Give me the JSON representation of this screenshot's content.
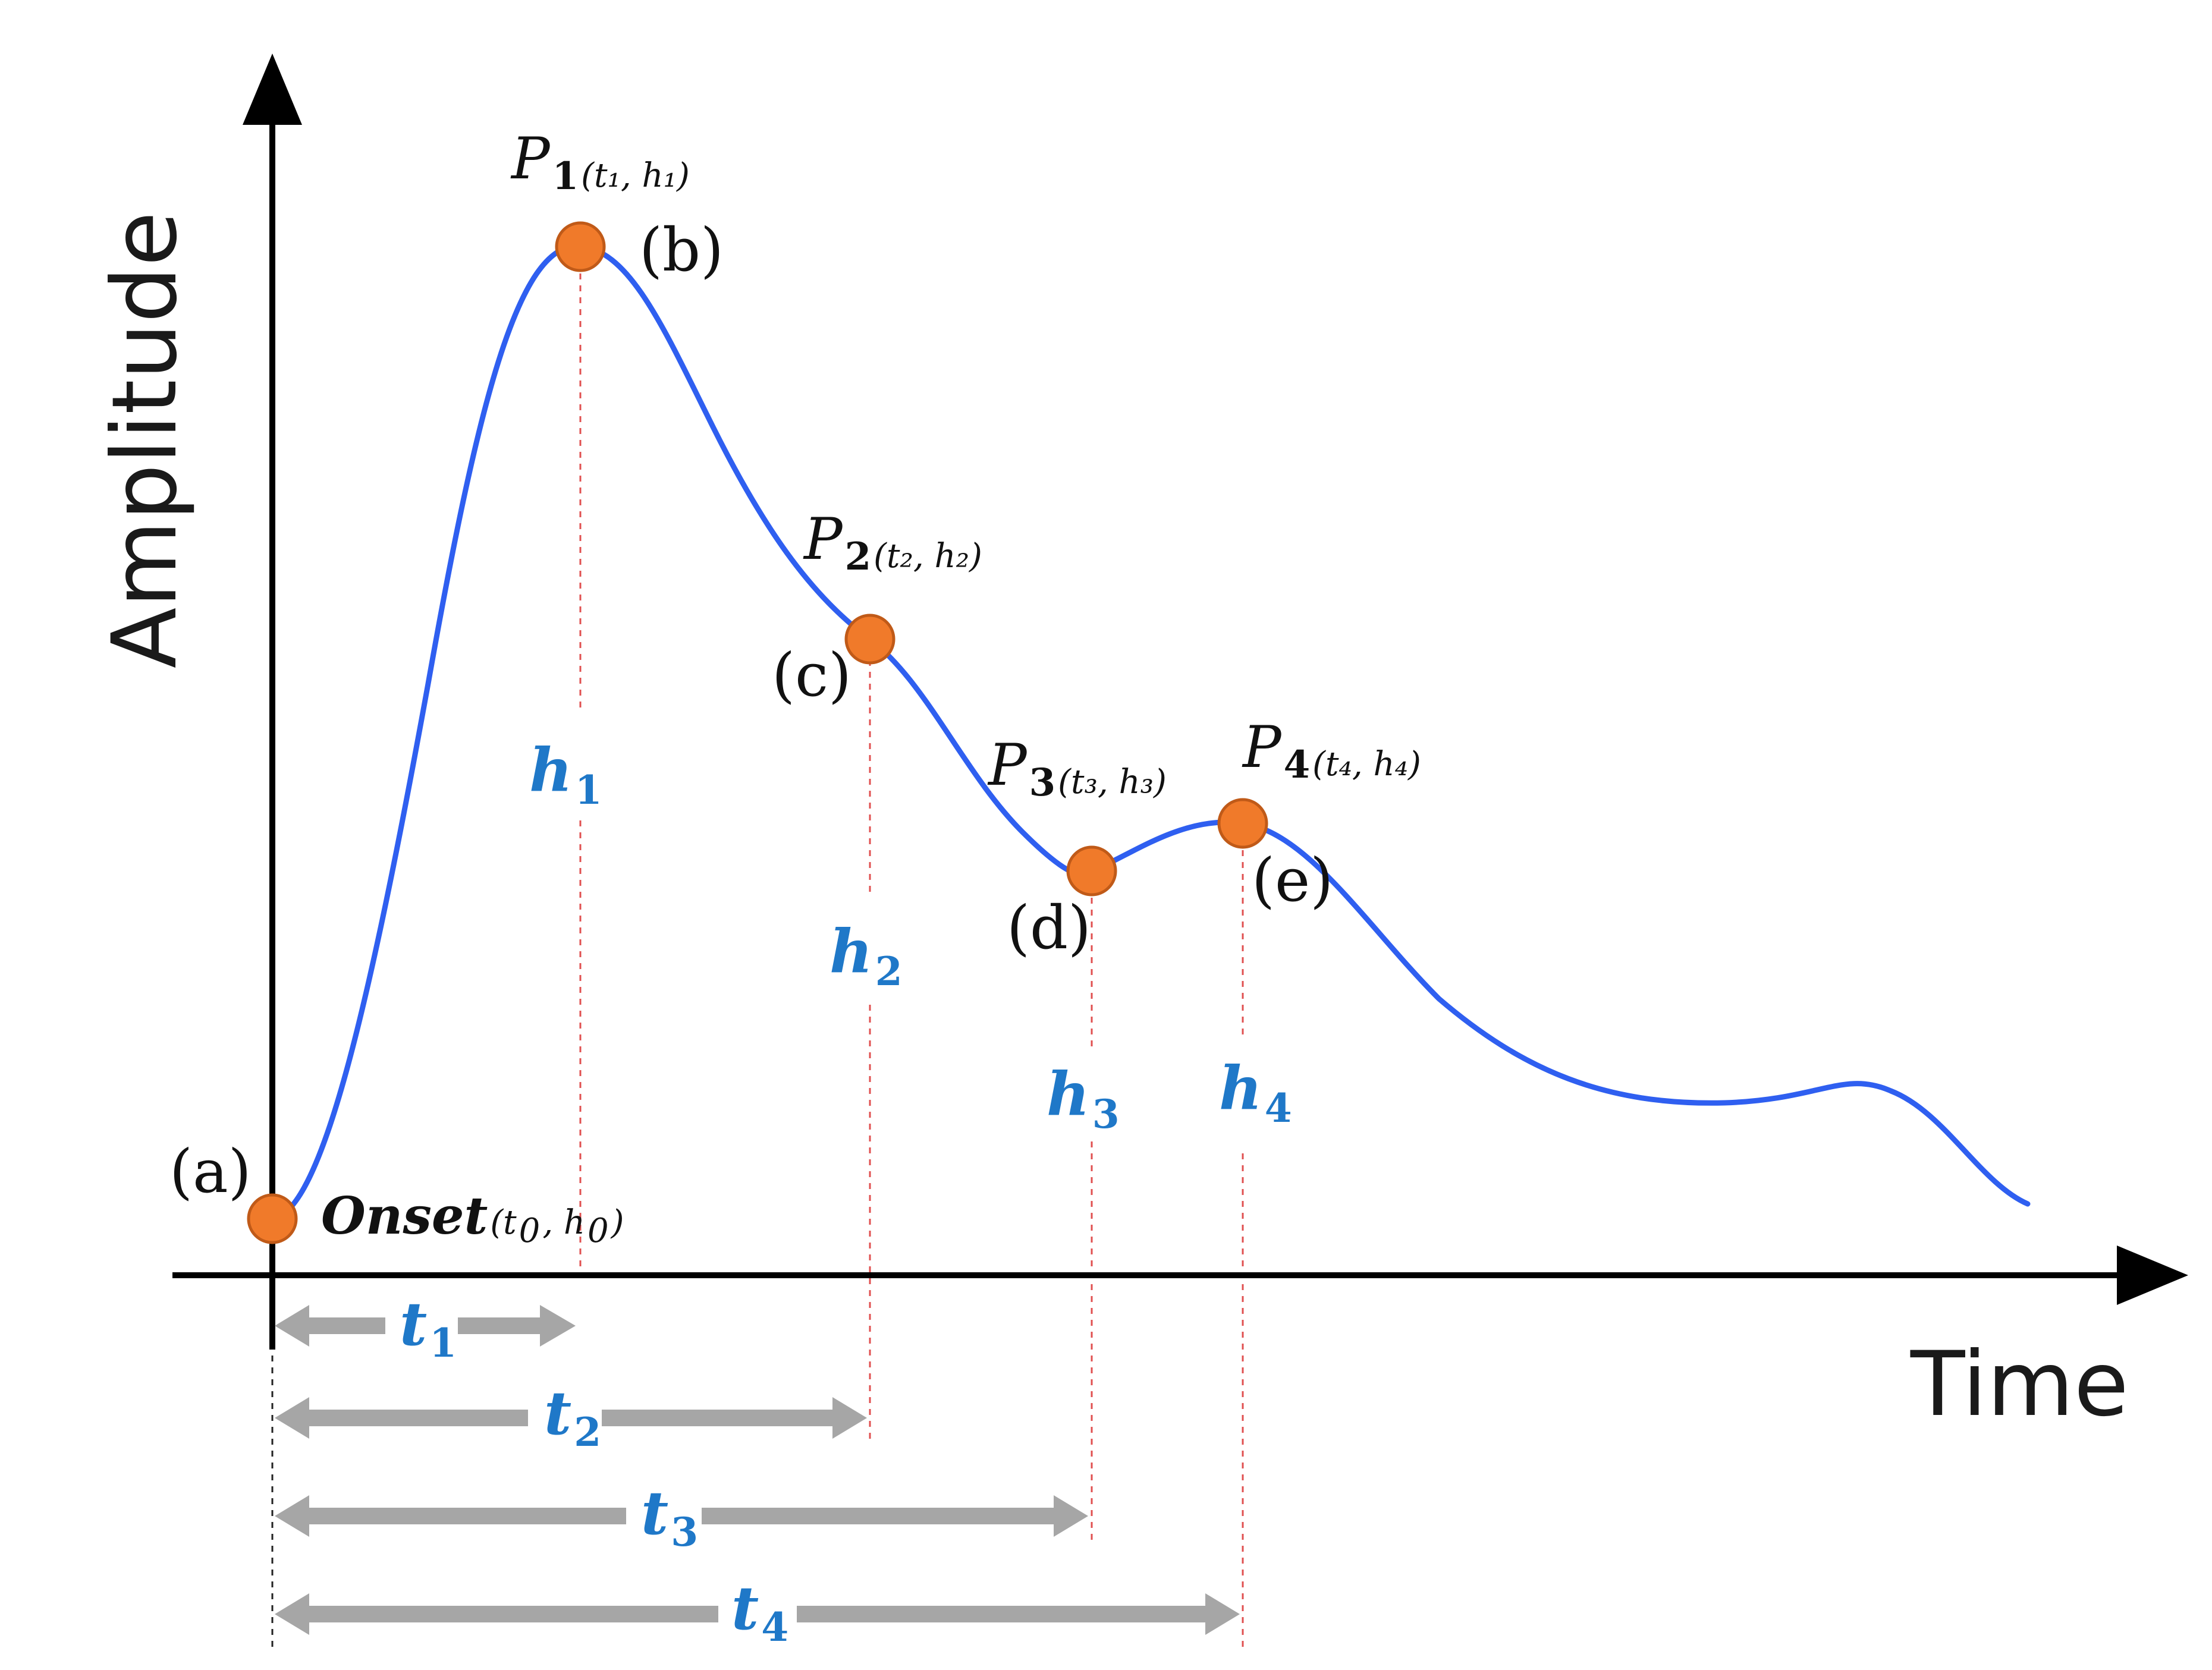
{
  "axes": {
    "y_title": "Amplitude",
    "x_title": "Time"
  },
  "colors": {
    "curve": "#2f5ff0",
    "point_fill": "#f07a2a",
    "point_stroke": "#c05a18",
    "label_blue": "#1f78c8",
    "bar_gray": "#a6a6a6"
  },
  "onset": {
    "label": "Onset",
    "coord_open": " (t",
    "coord_sub0": "0",
    "coord_mid": ", h",
    "coord_sub1": "0",
    "coord_close": ")",
    "tag": "(a)"
  },
  "points": [
    {
      "name": "P",
      "sub": "1",
      "coord": " (t₁, h₁)",
      "tag": "(b)"
    },
    {
      "name": "P",
      "sub": "2",
      "coord": " (t₂, h₂)",
      "tag": "(c)"
    },
    {
      "name": "P",
      "sub": "3",
      "coord": " (t₃, h₃)",
      "tag": "(d)"
    },
    {
      "name": "P",
      "sub": "4",
      "coord": " (t₄, h₄)",
      "tag": "(e)"
    }
  ],
  "heights": [
    {
      "main": "h",
      "sub": "1"
    },
    {
      "main": "h",
      "sub": "2"
    },
    {
      "main": "h",
      "sub": "3"
    },
    {
      "main": "h",
      "sub": "4"
    }
  ],
  "durations": [
    {
      "main": "t",
      "sub": "1"
    },
    {
      "main": "t",
      "sub": "2"
    },
    {
      "main": "t",
      "sub": "3"
    },
    {
      "main": "t",
      "sub": "4"
    }
  ]
}
